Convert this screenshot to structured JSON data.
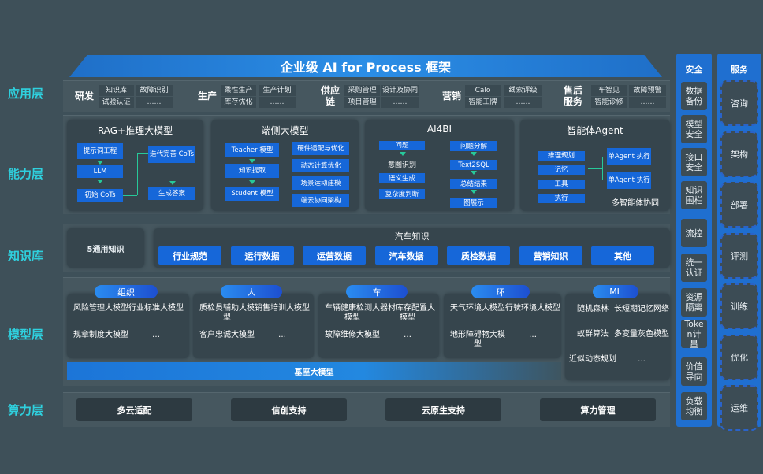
{
  "title": "企业级 AI for Process 框架",
  "layers": {
    "app": "应用层",
    "ability": "能力层",
    "knowledge": "知识库",
    "model": "模型层",
    "compute": "算力层"
  },
  "app_groups": [
    {
      "name": "研发",
      "cells": [
        "知识库",
        "故障识别",
        "试验认证",
        "……"
      ]
    },
    {
      "name": "生产",
      "cells": [
        "柔性生产",
        "生产计划",
        "库存优化",
        "……"
      ]
    },
    {
      "name": "供应链",
      "cells": [
        "采购管理",
        "设计及协同",
        "项目管理",
        "……"
      ]
    },
    {
      "name": "营销",
      "cells": [
        "Calo",
        "线索评级",
        "智能工牌",
        "……"
      ]
    },
    {
      "name": "售后服务",
      "cells": [
        "车智见",
        "故障预警",
        "智能诊修",
        "……"
      ]
    }
  ],
  "ability": {
    "rag": {
      "title": "RAG+推理大模型",
      "steps": [
        "提示词工程",
        "LLM",
        "初始 CoTs"
      ],
      "right": [
        "迭代完善 CoTs",
        "生成答案"
      ]
    },
    "edge": {
      "title": "端侧大模型",
      "steps": [
        "Teacher 模型",
        "知识提取",
        "Student 模型"
      ],
      "right": [
        "硬件适配与优化",
        "动态计算优化",
        "场景运动建模",
        "端云协同架构"
      ]
    },
    "ai4bi": {
      "title": "AI4BI",
      "left": [
        "问题",
        "意图识别",
        "语义生成",
        "复杂度判断"
      ],
      "right": [
        "问题分解",
        "Text2SQL",
        "总结结果",
        "图展示"
      ]
    },
    "agent": {
      "title": "智能体Agent",
      "left": [
        "推理规划",
        "记忆",
        "工具",
        "执行"
      ],
      "right": [
        "单Agent 执行",
        "单Agent 执行"
      ],
      "footer": "多智能体协同"
    }
  },
  "knowledge": {
    "general": "5通用知识",
    "auto_title": "汽车知识",
    "items": [
      "行业规范",
      "运行数据",
      "运营数据",
      "汽车数据",
      "质检数据",
      "营销知识",
      "其他"
    ]
  },
  "model": {
    "groups": [
      {
        "name": "组织",
        "items": [
          "风险管理大模型",
          "行业标准大模型",
          "规章制度大模型",
          "…"
        ]
      },
      {
        "name": "人",
        "items": [
          "质检员辅助大模型",
          "销售培训大模型",
          "客户忠诚大模型",
          "…"
        ]
      },
      {
        "name": "车",
        "items": [
          "车辆健康检测大模型",
          "器材库存配置大模型",
          "故障维修大模型",
          "…"
        ]
      },
      {
        "name": "环",
        "items": [
          "天气环境大模型",
          "行驶环境大模型",
          "地形障碍物大模型",
          "…"
        ]
      },
      {
        "name": "ML",
        "items": [
          "随机森林",
          "长短期记忆网络",
          "蚁群算法",
          "多变量灰色模型",
          "近似动态规划",
          "…"
        ]
      }
    ],
    "base": "基座大模型"
  },
  "compute": [
    "多云适配",
    "信创支持",
    "云原生支持",
    "算力管理"
  ],
  "security": {
    "title": "安全",
    "items": [
      "数据备份",
      "模型安全",
      "接口安全",
      "知识围栏",
      "流控",
      "统一认证",
      "资源隔离",
      "Token计量",
      "价值导向",
      "负载均衡"
    ]
  },
  "service": {
    "title": "服务",
    "items": [
      "咨询",
      "架构",
      "部署",
      "评测",
      "训练",
      "优化",
      "运维"
    ]
  }
}
